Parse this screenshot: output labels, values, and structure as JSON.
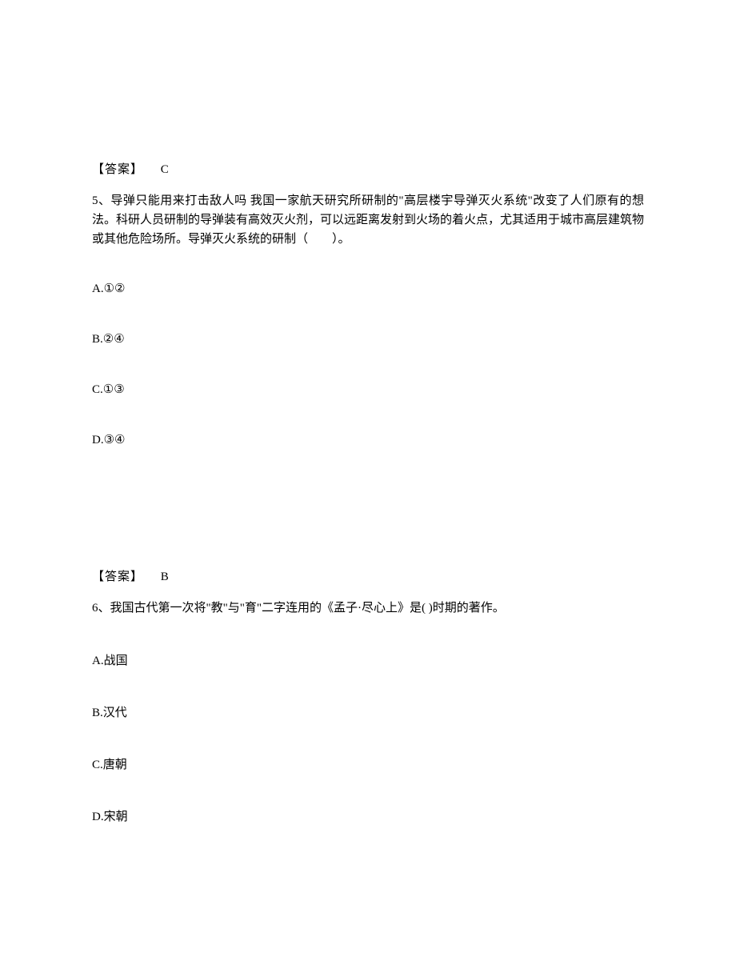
{
  "q5": {
    "prev_answer_label": "【答案】",
    "prev_answer_value": "C",
    "stem": "5、导弹只能用来打击敌人吗 我国一家航天研究所研制的\"高层楼宇导弹灭火系统\"改变了人们原有的想法。科研人员研制的导弹装有高效灭火剂，可以远距离发射到火场的着火点，尤其适用于城市高层建筑物或其他危险场所。导弹灭火系统的研制（　　）。",
    "options": {
      "a": "A.①②",
      "b": "B.②④",
      "c": "C.①③",
      "d": "D.③④"
    }
  },
  "q6": {
    "prev_answer_label": "【答案】",
    "prev_answer_value": "B",
    "stem": "6、我国古代第一次将\"教\"与\"育\"二字连用的《孟子·尽心上》是(  )时期的著作。",
    "options": {
      "a": "A.战国",
      "b": "B.汉代",
      "c": "C.唐朝",
      "d": "D.宋朝"
    }
  }
}
